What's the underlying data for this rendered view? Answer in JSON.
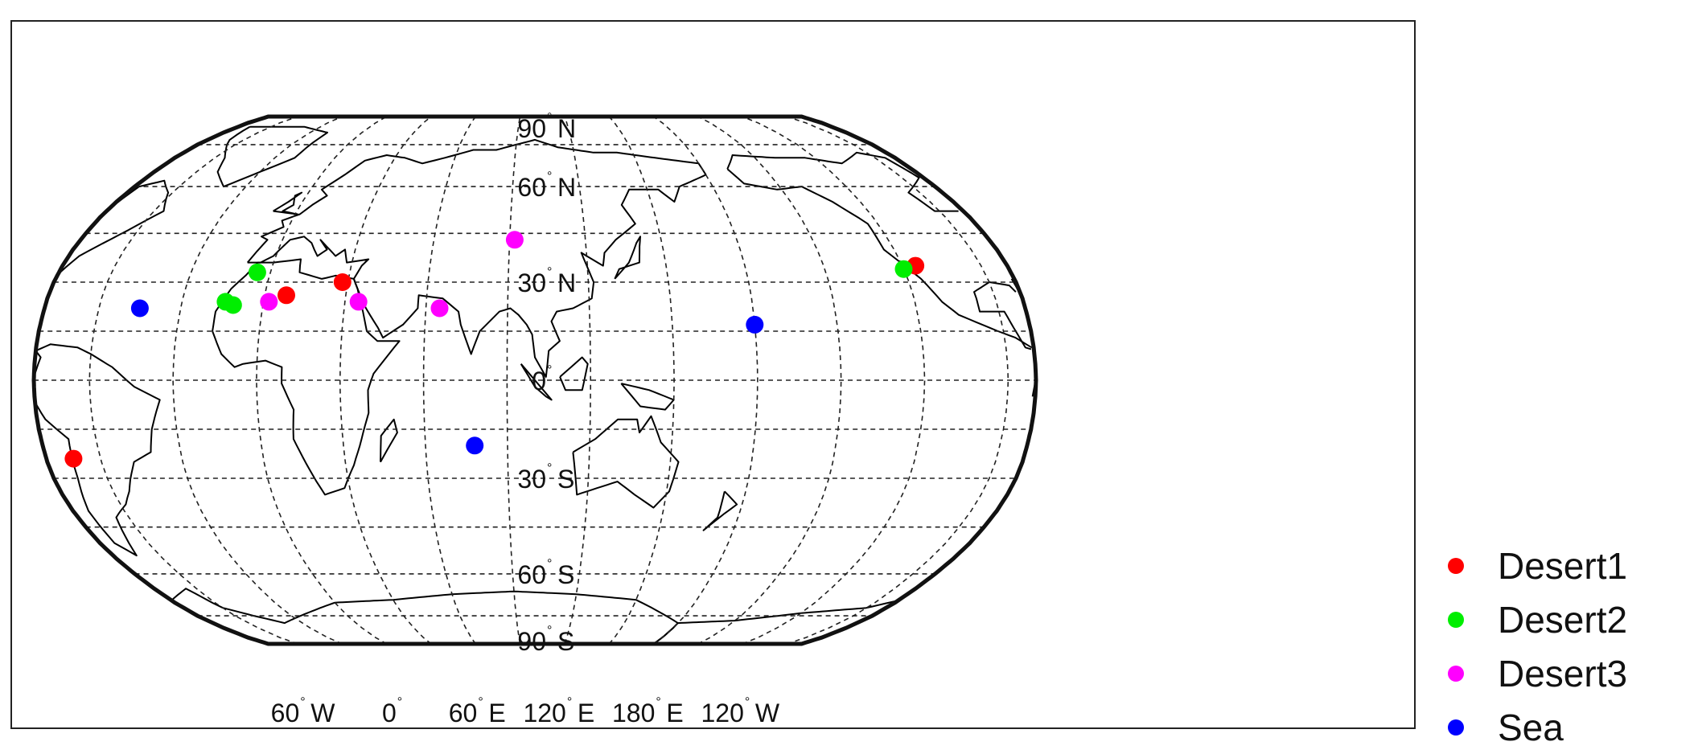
{
  "map": {
    "projection": "Robinson",
    "central_meridian_deg": 100,
    "graticule": {
      "parallels_every_deg": 15,
      "meridians_every_deg": 30,
      "style": "dashed"
    },
    "latitude_labels": [
      {
        "lat": 90,
        "value": "90",
        "hemi": "N"
      },
      {
        "lat": 60,
        "value": "60",
        "hemi": "N"
      },
      {
        "lat": 30,
        "value": "30",
        "hemi": "N"
      },
      {
        "lat": 0,
        "value": "0",
        "hemi": ""
      },
      {
        "lat": -30,
        "value": "30",
        "hemi": "S"
      },
      {
        "lat": -60,
        "value": "60",
        "hemi": "S"
      },
      {
        "lat": -90,
        "value": "90",
        "hemi": "S"
      }
    ],
    "longitude_labels": [
      {
        "lon": -60,
        "value": "60",
        "hemi": "W"
      },
      {
        "lon": 0,
        "value": "0",
        "hemi": ""
      },
      {
        "lon": 60,
        "value": "60",
        "hemi": "E"
      },
      {
        "lon": 120,
        "value": "120",
        "hemi": "E"
      },
      {
        "lon": 180,
        "value": "180",
        "hemi": "E"
      },
      {
        "lon": 240,
        "value": "120",
        "hemi": "W"
      }
    ],
    "degree_symbol": "°"
  },
  "legend": {
    "items": [
      {
        "label": "Desert1",
        "color": "#ff0000"
      },
      {
        "label": "Desert2",
        "color": "#00ee00"
      },
      {
        "label": "Desert3",
        "color": "#ff00ff"
      },
      {
        "label": "Sea",
        "color": "#0000ff"
      }
    ]
  },
  "sites": [
    {
      "category": "Desert1",
      "lon": -70,
      "lat": -24
    },
    {
      "category": "Desert1",
      "lon": 8,
      "lat": 26
    },
    {
      "category": "Desert1",
      "lon": 28,
      "lat": 30
    },
    {
      "category": "Desert1",
      "lon": -115,
      "lat": 35
    },
    {
      "category": "Desert2",
      "lon": -14,
      "lat": 24
    },
    {
      "category": "Desert2",
      "lon": -11,
      "lat": 23
    },
    {
      "category": "Desert2",
      "lon": -5,
      "lat": 33
    },
    {
      "category": "Desert2",
      "lon": -120,
      "lat": 34
    },
    {
      "category": "Desert3",
      "lon": 2,
      "lat": 24
    },
    {
      "category": "Desert3",
      "lon": 35,
      "lat": 24
    },
    {
      "category": "Desert3",
      "lon": 65,
      "lat": 22
    },
    {
      "category": "Desert3",
      "lon": 92,
      "lat": 43
    },
    {
      "category": "Sea",
      "lon": -45,
      "lat": 22
    },
    {
      "category": "Sea",
      "lon": 180,
      "lat": 17
    },
    {
      "category": "Sea",
      "lon": 78,
      "lat": -20
    }
  ]
}
